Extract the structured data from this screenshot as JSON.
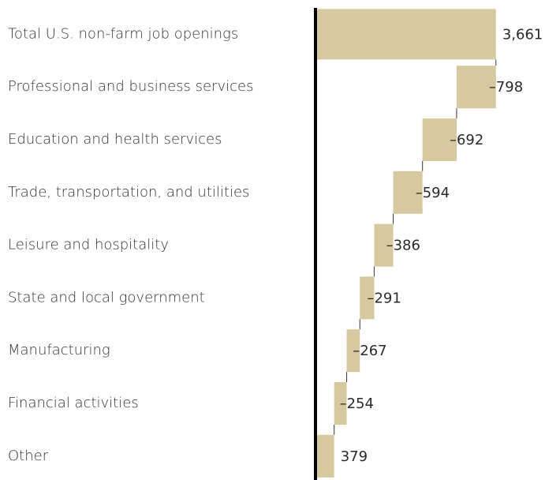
{
  "chart_data": {
    "type": "waterfall",
    "categories": [
      "Total U.S. non-farm job openings",
      "Professional and business services",
      "Education and health services",
      "Trade, transportation, and utilities",
      "Leisure and hospitality",
      "State and local government",
      "Manufacturing",
      "Financial activities",
      "Other"
    ],
    "values": [
      3661,
      -798,
      -692,
      -594,
      -386,
      -291,
      -267,
      -254,
      379
    ],
    "value_labels": [
      "3,661",
      "–798",
      "–692",
      "–594",
      "–386",
      "–291",
      "–267",
      "–254",
      "379"
    ],
    "measure": [
      "absolute",
      "relative",
      "relative",
      "relative",
      "relative",
      "relative",
      "relative",
      "relative",
      "absolute"
    ],
    "color": "#d6c9a0",
    "xlim": [
      0,
      4000
    ]
  }
}
